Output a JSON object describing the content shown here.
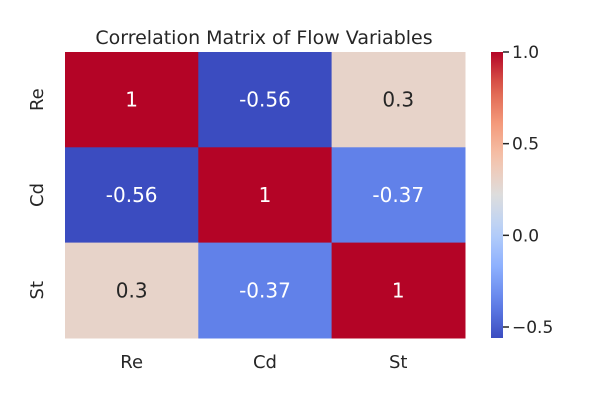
{
  "chart_data": {
    "type": "heatmap",
    "title": "Correlation Matrix of Flow Variables",
    "x_labels": [
      "Re",
      "Cd",
      "St"
    ],
    "y_labels": [
      "Re",
      "Cd",
      "St"
    ],
    "values": [
      [
        1,
        -0.56,
        0.3
      ],
      [
        -0.56,
        1,
        -0.37
      ],
      [
        0.3,
        -0.37,
        1
      ]
    ],
    "cell_labels": [
      [
        "1",
        "-0.56",
        "0.3"
      ],
      [
        "-0.56",
        "1",
        "-0.37"
      ],
      [
        "0.3",
        "-0.37",
        "1"
      ]
    ],
    "colormap": "coolwarm",
    "colorbar": {
      "range": [
        -0.56,
        1
      ],
      "ticks": [
        1.0,
        0.5,
        0.0,
        -0.5
      ],
      "tick_labels": [
        "1.0",
        "0.5",
        "0.0",
        "−0.5"
      ]
    },
    "colors": {
      "text_light": "#ffffff",
      "text_dark": "#262626"
    }
  }
}
